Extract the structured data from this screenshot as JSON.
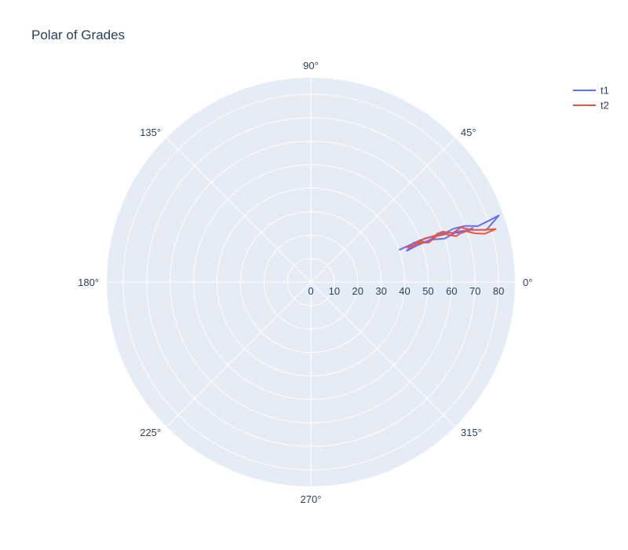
{
  "chart_data": {
    "type": "line",
    "subtype": "polar",
    "title": "Polar of Grades",
    "angular_axis": {
      "ticks": [
        0,
        45,
        90,
        135,
        180,
        225,
        270,
        315
      ],
      "tick_labels": [
        "0°",
        "45°",
        "90°",
        "135°",
        "180°",
        "225°",
        "270°",
        "315°"
      ],
      "direction": "counterclockwise",
      "rotation": 0
    },
    "radial_axis": {
      "range": [
        0,
        87
      ],
      "ticks": [
        0,
        10,
        20,
        30,
        40,
        50,
        60,
        70,
        80
      ],
      "tick_labels": [
        "0",
        "10",
        "20",
        "30",
        "40",
        "50",
        "60",
        "70",
        "80"
      ],
      "label_angle": 0
    },
    "grid": true,
    "background_color": "#e5ecf6",
    "grid_color": "#ffffff",
    "legend": {
      "position": "top-right"
    },
    "series": [
      {
        "name": "t1",
        "color": "#636efa",
        "points": [
          {
            "r": 40,
            "theta": 20
          },
          {
            "r": 45,
            "theta": 20.5
          },
          {
            "r": 50,
            "theta": 21
          },
          {
            "r": 55,
            "theta": 20.5
          },
          {
            "r": 60,
            "theta": 20
          },
          {
            "r": 65,
            "theta": 20.5
          },
          {
            "r": 70,
            "theta": 20
          },
          {
            "r": 75,
            "theta": 18.5
          },
          {
            "r": 80,
            "theta": 19
          },
          {
            "r": 85,
            "theta": 19.5
          },
          {
            "r": 78,
            "theta": 16.5
          },
          {
            "r": 72,
            "theta": 18
          },
          {
            "r": 66,
            "theta": 19
          },
          {
            "r": 60,
            "theta": 18
          },
          {
            "r": 54,
            "theta": 19.5
          },
          {
            "r": 48,
            "theta": 19
          },
          {
            "r": 43,
            "theta": 18
          },
          {
            "r": 47,
            "theta": 21
          },
          {
            "r": 53,
            "theta": 19
          },
          {
            "r": 58,
            "theta": 21
          },
          {
            "r": 63,
            "theta": 19.5
          },
          {
            "r": 68,
            "theta": 18
          },
          {
            "r": 73,
            "theta": 18.5
          }
        ]
      },
      {
        "name": "t2",
        "color": "#ef553b",
        "points": [
          {
            "r": 43,
            "theta": 20
          },
          {
            "r": 48,
            "theta": 19.5
          },
          {
            "r": 52,
            "theta": 21
          },
          {
            "r": 56,
            "theta": 20.5
          },
          {
            "r": 60,
            "theta": 21
          },
          {
            "r": 64,
            "theta": 19
          },
          {
            "r": 68,
            "theta": 20
          },
          {
            "r": 72,
            "theta": 18
          },
          {
            "r": 76,
            "theta": 17
          },
          {
            "r": 82,
            "theta": 16
          },
          {
            "r": 77,
            "theta": 15.5
          },
          {
            "r": 73,
            "theta": 16.5
          },
          {
            "r": 69,
            "theta": 18.5
          },
          {
            "r": 65,
            "theta": 17.5
          },
          {
            "r": 61,
            "theta": 19.5
          },
          {
            "r": 57,
            "theta": 20
          },
          {
            "r": 53,
            "theta": 18.5
          },
          {
            "r": 49,
            "theta": 20
          },
          {
            "r": 45,
            "theta": 19
          },
          {
            "r": 50,
            "theta": 21
          }
        ]
      }
    ]
  }
}
